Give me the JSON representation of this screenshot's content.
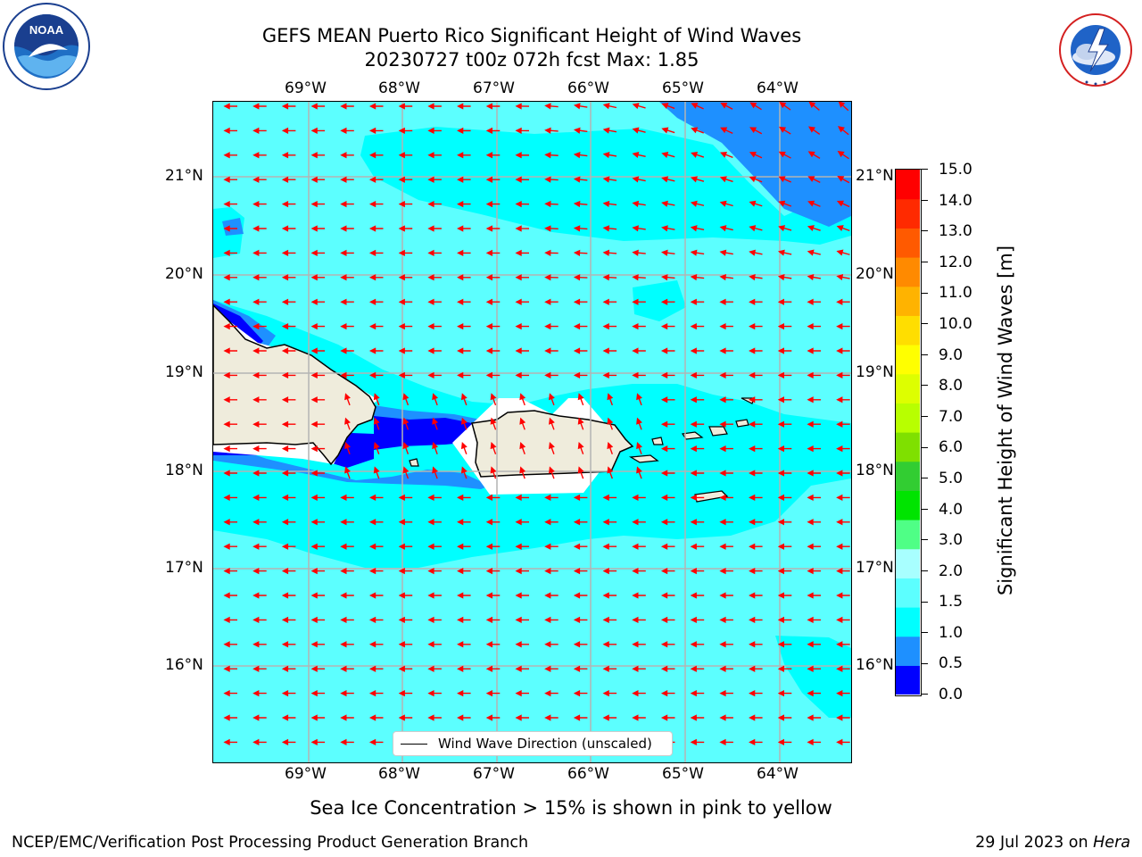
{
  "title_line1": "GEFS MEAN Puerto Rico Significant Height of Wind Waves",
  "title_line2": "20230727 t00z 072h fcst   Max: 1.85",
  "logos": {
    "noaa": {
      "text": "NOAA",
      "ring_text": "NATIONAL OCEANIC AND ATMOSPHERIC ADMINISTRATION · U.S. DEPARTMENT OF COMMERCE"
    },
    "nws": {
      "ring_text": "NATIONAL WEATHER SERVICE"
    }
  },
  "map": {
    "lon_labels": [
      "69°W",
      "68°W",
      "67°W",
      "66°W",
      "65°W",
      "64°W"
    ],
    "lat_labels": [
      "21°N",
      "20°N",
      "19°N",
      "18°N",
      "17°N",
      "16°N"
    ],
    "legend_label": "Wind Wave Direction (unscaled)",
    "arrow_color": "#ff0000"
  },
  "colorbar": {
    "label": "Significant Height of Wind Waves [m]",
    "ticks": [
      "15.0",
      "14.0",
      "13.0",
      "12.0",
      "11.0",
      "10.0",
      "9.0",
      "8.0",
      "7.0",
      "6.0",
      "5.0",
      "4.0",
      "3.0",
      "2.0",
      "1.5",
      "1.0",
      "0.5",
      "0.0"
    ],
    "colors_bottom_to_top": [
      "#0000ff",
      "#1e90ff",
      "#00ffff",
      "#5cffff",
      "#a8ffff",
      "#4fff86",
      "#00e400",
      "#32cd32",
      "#7fe000",
      "#b8ff00",
      "#ddff00",
      "#ffff00",
      "#ffde00",
      "#ffb300",
      "#ff8a00",
      "#ff5a00",
      "#ff2a00",
      "#ff0000"
    ]
  },
  "sea_ice_note": "Sea Ice Concentration > 15% is shown in pink to yellow",
  "footer_left": "NCEP/EMC/Verification Post Processing Product Generation Branch",
  "footer_right_prefix": "29 Jul 2023 on ",
  "footer_right_host": "Hera"
}
